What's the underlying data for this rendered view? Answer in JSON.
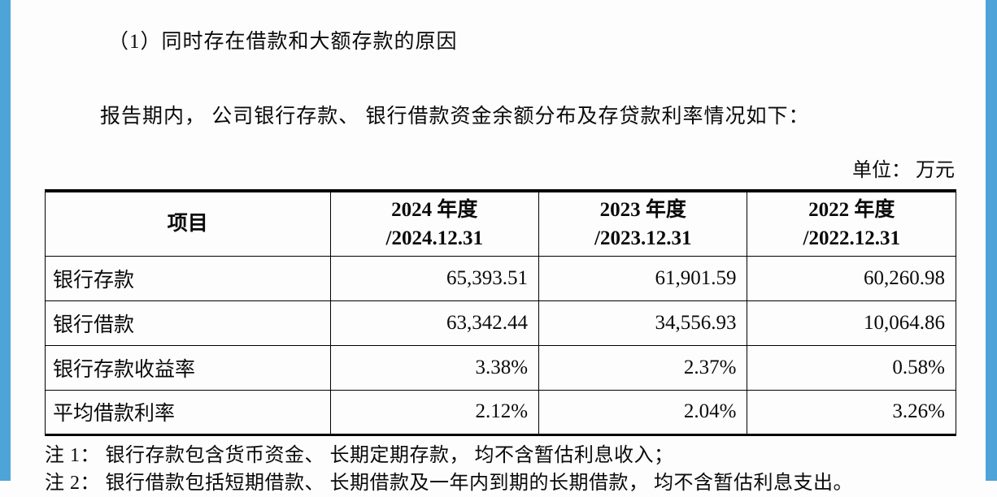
{
  "page": {
    "heading": "（1）同时存在借款和大额存款的原因",
    "intro": "报告期内， 公司银行存款、 银行借款资金余额分布及存贷款利率情况如下：",
    "unit_label": "单位： 万元",
    "notes": [
      "注 1： 银行存款包含货币资金、 长期定期存款， 均不含暂估利息收入；",
      "注 2： 银行借款包括短期借款、 长期借款及一年内到期的长期借款， 均不含暂估利息支出。"
    ]
  },
  "table": {
    "header": {
      "col0": "项目",
      "col1_line1": "2024 年度",
      "col1_line2": "/2024.12.31",
      "col2_line1": "2023 年度",
      "col2_line2": "/2023.12.31",
      "col3_line1": "2022 年度",
      "col3_line2": "/2022.12.31"
    },
    "rows": [
      {
        "label": "银行存款",
        "values": [
          "65,393.51",
          "61,901.59",
          "60,260.98"
        ]
      },
      {
        "label": "银行借款",
        "values": [
          "63,342.44",
          "34,556.93",
          "10,064.86"
        ]
      },
      {
        "label": "银行存款收益率",
        "values": [
          "3.38%",
          "2.37%",
          "0.58%"
        ]
      },
      {
        "label": "平均借款利率",
        "values": [
          "2.12%",
          "2.04%",
          "3.26%"
        ]
      }
    ]
  },
  "colors": {
    "accent_blue": "#4ea3d8",
    "text": "#0a0a0a",
    "background": "#fdfdfd",
    "table_border": "#000000"
  }
}
